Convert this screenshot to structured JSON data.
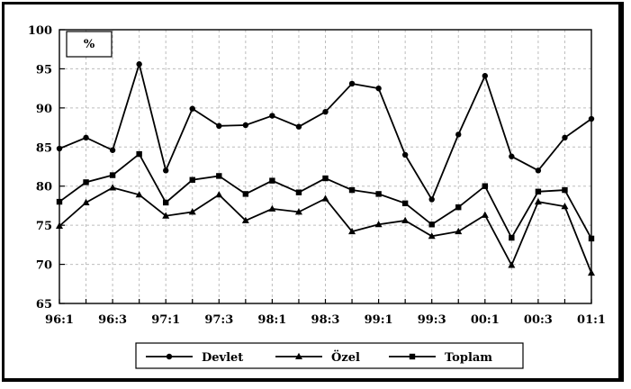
{
  "chart_data": {
    "type": "line",
    "unit_label": "%",
    "ylim": [
      65,
      100
    ],
    "yticks": [
      65,
      70,
      75,
      80,
      85,
      90,
      95,
      100
    ],
    "xtick_labels": [
      "96:1",
      "96:3",
      "97:1",
      "97:3",
      "98:1",
      "98:3",
      "99:1",
      "99:3",
      "00:1",
      "00:3",
      "01:1"
    ],
    "x": [
      "96:1",
      "96:2",
      "96:3",
      "96:4",
      "97:1",
      "97:2",
      "97:3",
      "97:4",
      "98:1",
      "98:2",
      "98:3",
      "98:4",
      "99:1",
      "99:2",
      "99:3",
      "99:4",
      "00:1",
      "00:2",
      "00:3",
      "00:4",
      "01:1"
    ],
    "grid": true,
    "legend_position": "bottom",
    "series": [
      {
        "name": "Devlet",
        "marker": "circle",
        "values": [
          84.8,
          86.2,
          84.6,
          95.6,
          82.0,
          89.9,
          87.7,
          87.8,
          89.0,
          87.6,
          89.5,
          93.1,
          92.5,
          84.0,
          78.3,
          86.6,
          94.1,
          83.8,
          82.0,
          86.2,
          88.6
        ]
      },
      {
        "name": "Özel",
        "marker": "triangle",
        "values": [
          74.9,
          77.9,
          79.8,
          78.9,
          76.2,
          76.7,
          78.9,
          75.6,
          77.1,
          76.7,
          78.4,
          74.2,
          75.1,
          75.6,
          73.6,
          74.2,
          76.3,
          69.9,
          78.0,
          77.4,
          68.9
        ]
      },
      {
        "name": "Toplam",
        "marker": "square",
        "values": [
          78.0,
          80.5,
          81.4,
          84.1,
          77.9,
          80.8,
          81.3,
          79.0,
          80.7,
          79.2,
          81.0,
          79.5,
          79.0,
          77.8,
          75.1,
          77.3,
          80.0,
          73.4,
          79.3,
          79.5,
          73.3
        ]
      }
    ]
  }
}
